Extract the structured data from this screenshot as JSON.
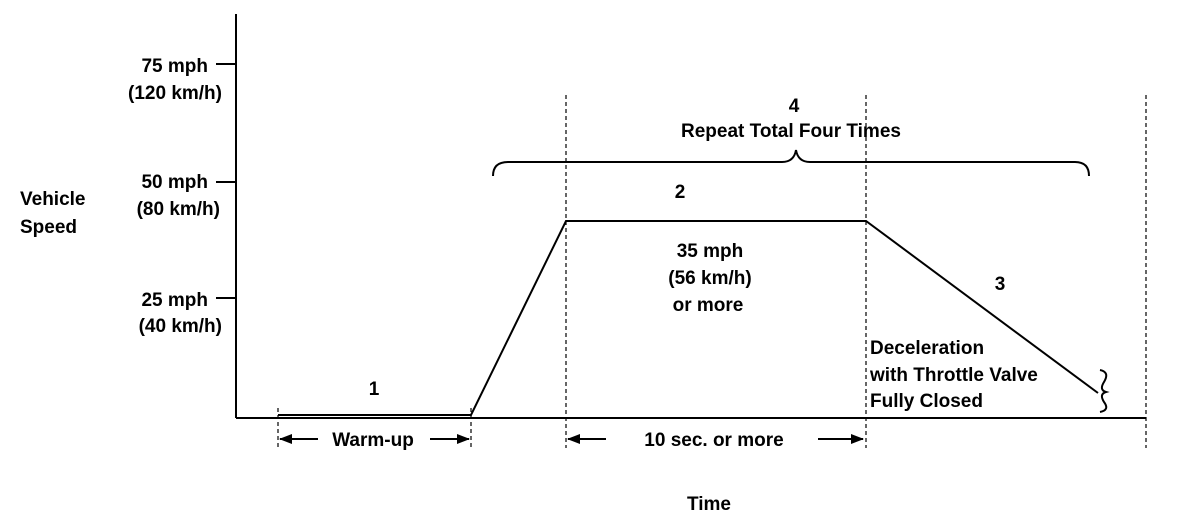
{
  "y_axis": {
    "label_line1": "Vehicle",
    "label_line2": "Speed",
    "ticks": [
      {
        "mph": "75 mph",
        "kmh": "(120 km/h)"
      },
      {
        "mph": "50 mph",
        "kmh": "(80 km/h)"
      },
      {
        "mph": "25 mph",
        "kmh": "(40 km/h)"
      }
    ]
  },
  "x_axis": {
    "label": "Time"
  },
  "steps": {
    "step1": "1",
    "step2": "2",
    "step3": "3",
    "step4": "4"
  },
  "annotations": {
    "repeat": "Repeat Total Four Times",
    "speed_line1": "35 mph",
    "speed_line2": "(56 km/h)",
    "speed_line3": "or more",
    "decel_line1": "Deceleration",
    "decel_line2": "with Throttle Valve",
    "decel_line3": "Fully Closed",
    "warmup": "Warm-up",
    "duration": "10 sec. or more"
  }
}
